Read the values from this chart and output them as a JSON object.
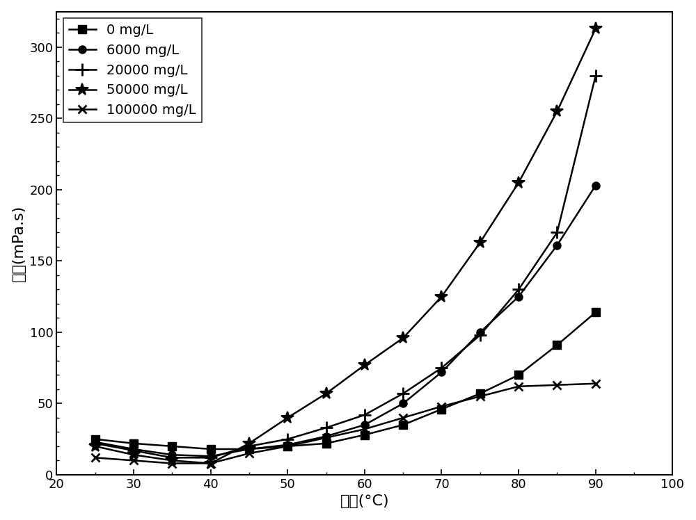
{
  "title": "",
  "xlabel": "温度(°C)",
  "ylabel": "粘度(mPa.s)",
  "xlim": [
    20,
    100
  ],
  "ylim": [
    0,
    325
  ],
  "xtick_major": [
    20,
    30,
    40,
    50,
    60,
    70,
    80,
    90,
    100
  ],
  "xtick_minor_step": 5,
  "ytick_major": [
    0,
    50,
    100,
    150,
    200,
    250,
    300
  ],
  "ytick_minor_step": 10,
  "series": [
    {
      "label": "0 mg/L",
      "marker": "s",
      "x": [
        25,
        30,
        35,
        40,
        45,
        50,
        55,
        60,
        65,
        70,
        75,
        80,
        85,
        90
      ],
      "y": [
        25,
        22,
        20,
        18,
        18,
        20,
        22,
        28,
        35,
        46,
        57,
        70,
        91,
        114
      ]
    },
    {
      "label": "6000 mg/L",
      "marker": "o",
      "x": [
        25,
        30,
        35,
        40,
        45,
        50,
        55,
        60,
        65,
        70,
        75,
        80,
        85,
        90
      ],
      "y": [
        23,
        18,
        14,
        13,
        18,
        21,
        27,
        35,
        50,
        72,
        100,
        125,
        161,
        203
      ]
    },
    {
      "label": "20000 mg/L",
      "marker": "+",
      "x": [
        25,
        30,
        35,
        40,
        45,
        50,
        55,
        60,
        65,
        70,
        75,
        80,
        85,
        90
      ],
      "y": [
        22,
        17,
        12,
        12,
        20,
        25,
        33,
        42,
        57,
        75,
        98,
        130,
        170,
        280
      ]
    },
    {
      "label": "50000 mg/L",
      "marker": "*",
      "x": [
        25,
        30,
        35,
        40,
        45,
        50,
        55,
        60,
        65,
        70,
        75,
        80,
        85,
        90
      ],
      "y": [
        20,
        14,
        10,
        8,
        22,
        40,
        57,
        77,
        96,
        125,
        163,
        205,
        255,
        313
      ]
    },
    {
      "label": "100000 mg/L",
      "marker": "x",
      "x": [
        25,
        30,
        35,
        40,
        45,
        50,
        55,
        60,
        65,
        70,
        75,
        80,
        85,
        90
      ],
      "y": [
        12,
        10,
        8,
        8,
        15,
        20,
        26,
        32,
        40,
        48,
        55,
        62,
        63,
        64
      ]
    }
  ],
  "line_color": "#000000",
  "background_color": "#ffffff",
  "legend_fontsize": 14,
  "axis_fontsize": 16,
  "tick_fontsize": 13,
  "linewidth": 1.8,
  "markersize": 8,
  "marker_plus_size": 13,
  "marker_star_size": 13
}
